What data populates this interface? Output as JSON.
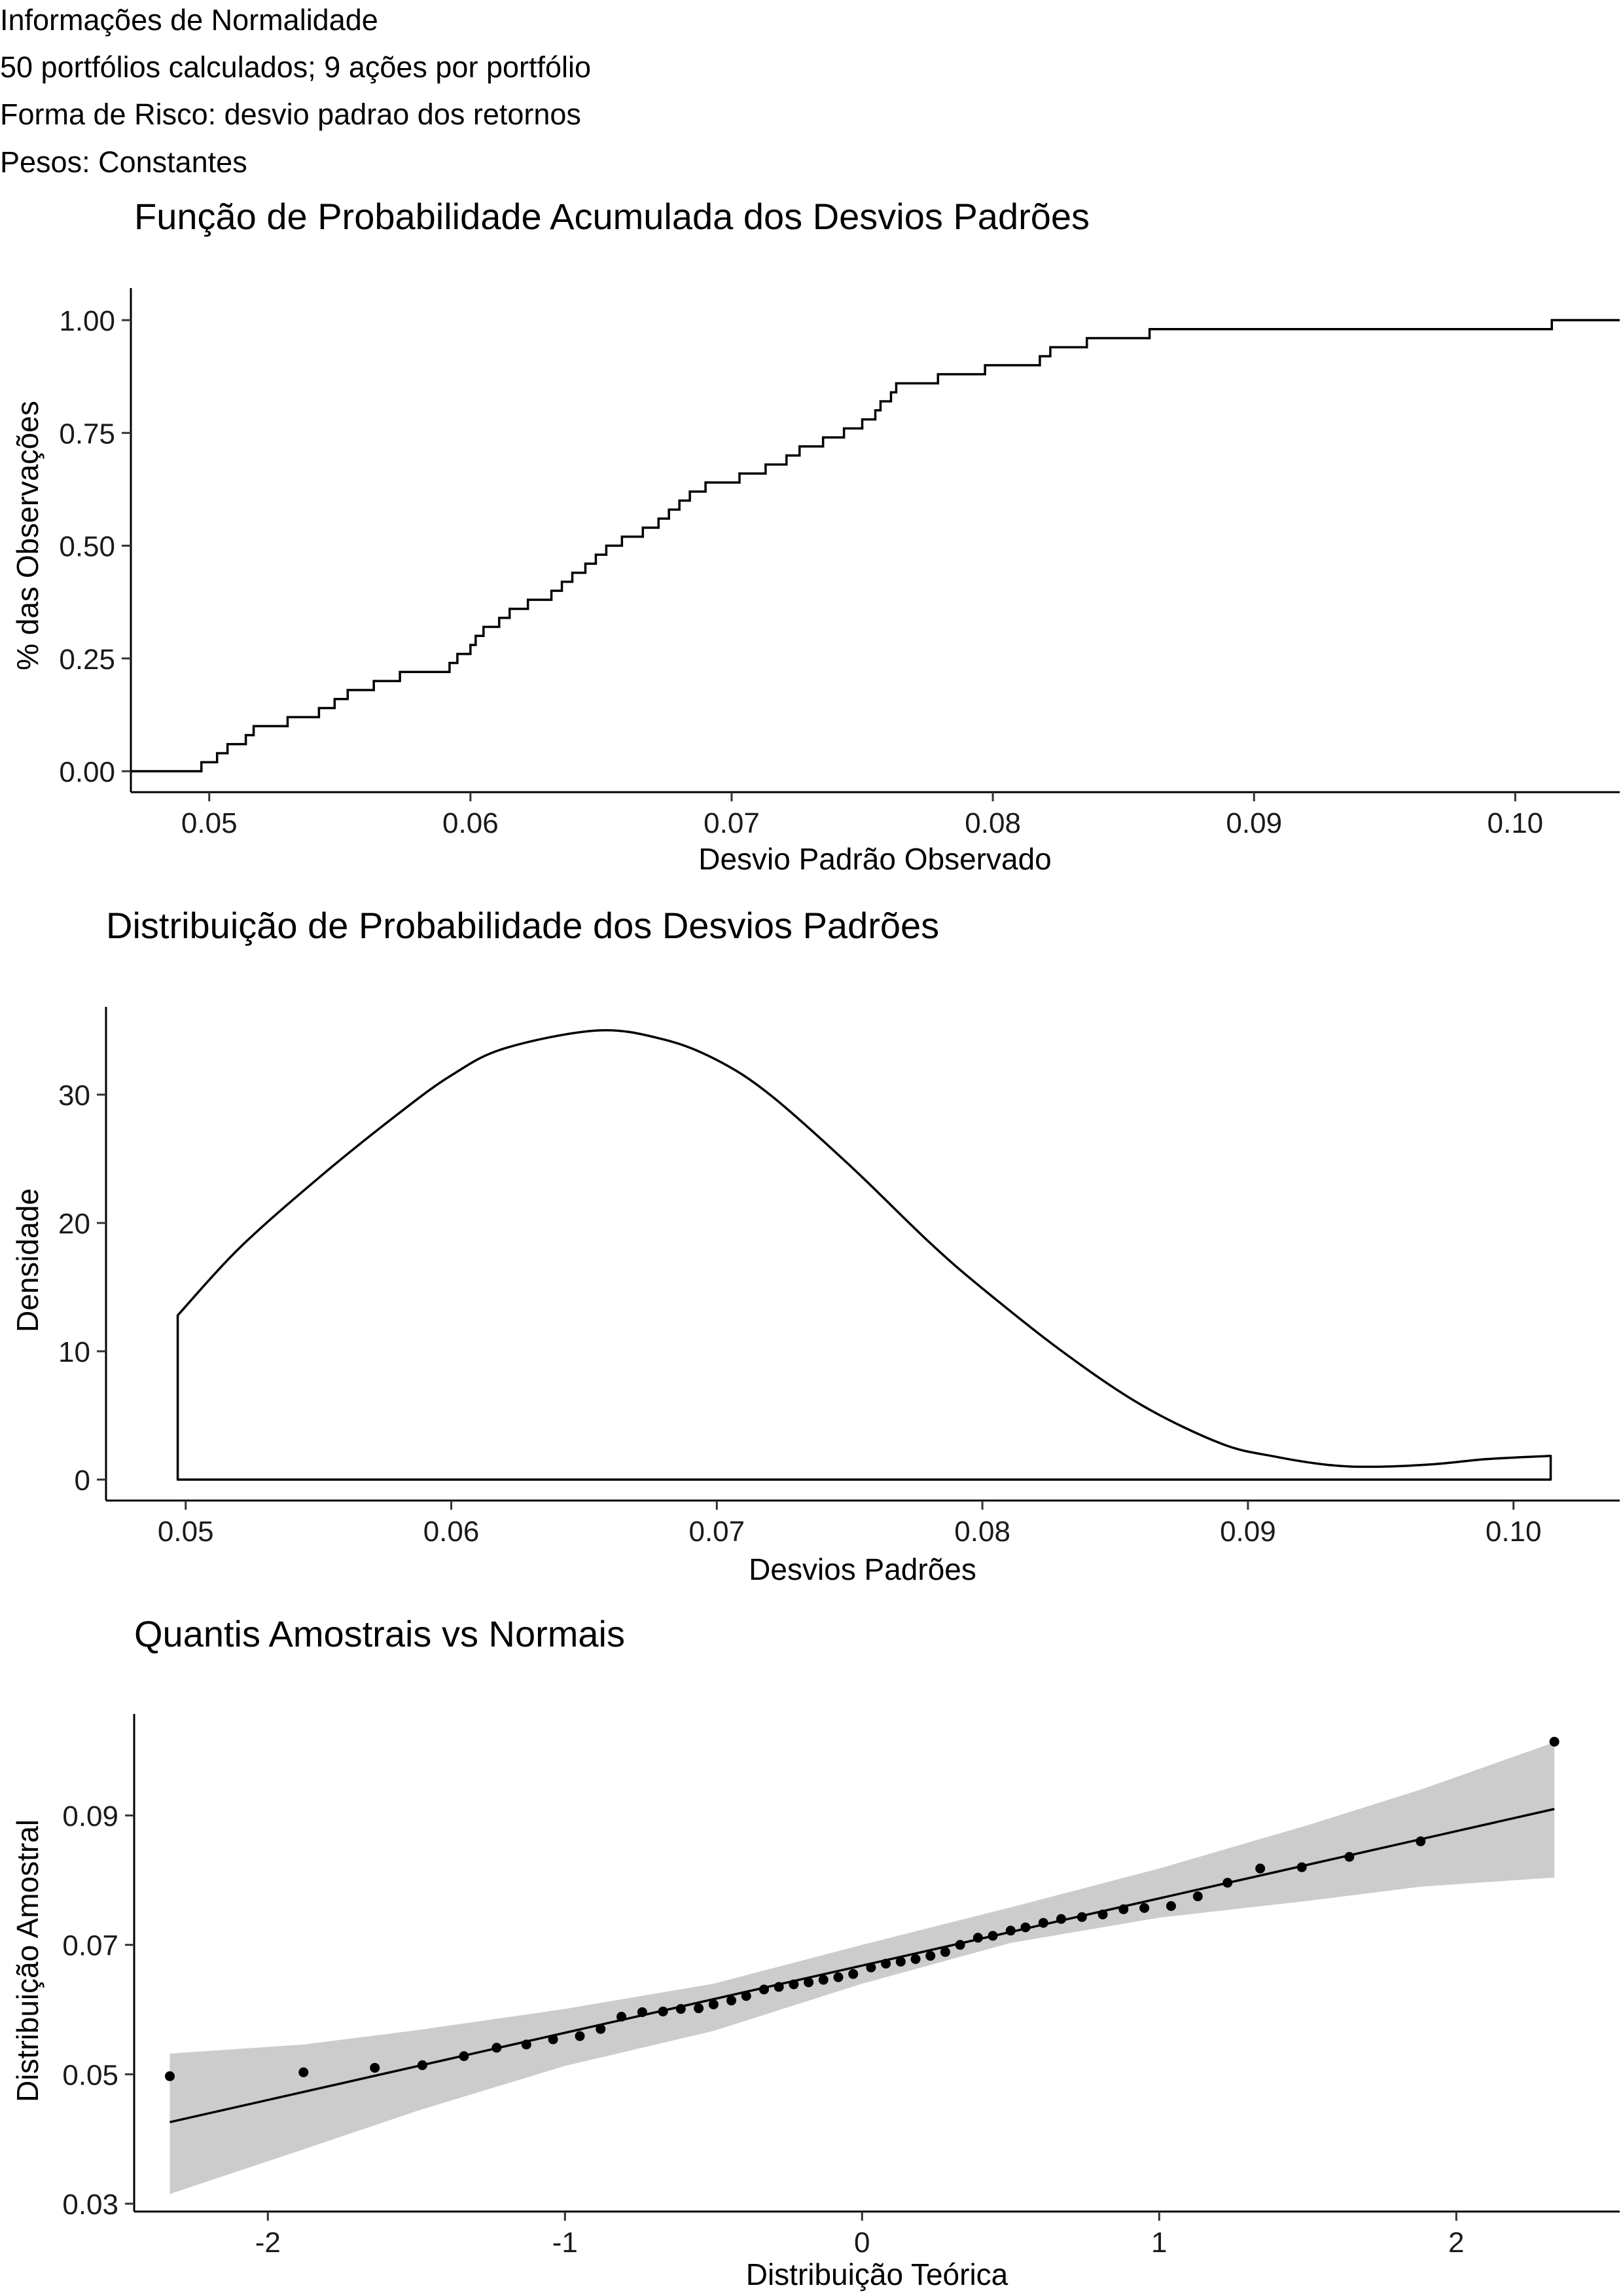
{
  "header": {
    "lines": [
      "Informações de Normalidade",
      "50 portfólios calculados; 9 ações por portfólio",
      "Forma de Risco: desvio padrao dos retornos",
      "Pesos: Constantes"
    ]
  },
  "chart_data": [
    {
      "type": "line",
      "subtype": "ecdf-step",
      "title": "Função de Probabilidade Acumulada dos Desvios Padrões",
      "xlabel": "Desvio Padrão Observado",
      "ylabel": "% das Observações",
      "xlim": [
        0.047,
        0.104
      ],
      "ylim": [
        0,
        1
      ],
      "xticks": [
        "0.05",
        "0.06",
        "0.07",
        "0.08",
        "0.09",
        "0.10"
      ],
      "yticks": [
        "0.00",
        "0.25",
        "0.50",
        "0.75",
        "1.00"
      ],
      "x": [
        0.0497,
        0.0503,
        0.0507,
        0.0514,
        0.0517,
        0.053,
        0.0542,
        0.0548,
        0.0553,
        0.0563,
        0.0573,
        0.0592,
        0.0595,
        0.06,
        0.0602,
        0.0605,
        0.0611,
        0.0615,
        0.0622,
        0.0631,
        0.0635,
        0.0639,
        0.0644,
        0.0648,
        0.0652,
        0.0658,
        0.0666,
        0.0672,
        0.0676,
        0.068,
        0.0684,
        0.069,
        0.0703,
        0.0713,
        0.0721,
        0.0726,
        0.0735,
        0.0743,
        0.075,
        0.0755,
        0.0757,
        0.0761,
        0.0763,
        0.0779,
        0.0797,
        0.0818,
        0.0822,
        0.0836,
        0.086,
        0.1014
      ],
      "y": [
        0.02,
        0.04,
        0.06,
        0.08,
        0.1,
        0.12,
        0.14,
        0.16,
        0.18,
        0.2,
        0.22,
        0.24,
        0.26,
        0.28,
        0.3,
        0.32,
        0.34,
        0.36,
        0.38,
        0.4,
        0.42,
        0.44,
        0.46,
        0.48,
        0.5,
        0.52,
        0.54,
        0.56,
        0.58,
        0.6,
        0.62,
        0.64,
        0.66,
        0.68,
        0.7,
        0.72,
        0.74,
        0.76,
        0.78,
        0.8,
        0.82,
        0.84,
        0.86,
        0.88,
        0.9,
        0.92,
        0.94,
        0.96,
        0.98,
        1.0
      ],
      "grid": false
    },
    {
      "type": "area",
      "subtype": "density",
      "title": "Distribuição de Probabilidade dos Desvios Padrões",
      "xlabel": "Desvios Padrões",
      "ylabel": "Densidade",
      "xlim": [
        0.047,
        0.104
      ],
      "ylim": [
        0,
        35
      ],
      "xticks": [
        "0.05",
        "0.06",
        "0.07",
        "0.08",
        "0.09",
        "0.10"
      ],
      "yticks": [
        "0",
        "10",
        "20",
        "30"
      ],
      "x": [
        0.0497,
        0.052,
        0.055,
        0.058,
        0.06,
        0.062,
        0.0655,
        0.068,
        0.07,
        0.072,
        0.075,
        0.078,
        0.08,
        0.083,
        0.086,
        0.089,
        0.091,
        0.093,
        0.0947,
        0.097,
        0.099,
        0.1014
      ],
      "y": [
        12.8,
        18.0,
        23.5,
        28.5,
        31.5,
        33.6,
        35.0,
        34.3,
        32.7,
        30.0,
        24.5,
        18.5,
        14.9,
        10.0,
        5.8,
        2.8,
        1.8,
        1.15,
        1.0,
        1.2,
        1.6,
        1.85
      ],
      "grid": false
    },
    {
      "type": "scatter",
      "subtype": "qq-plot",
      "title": "Quantis Amostrais vs Normais",
      "xlabel": "Distribuição Teórica",
      "ylabel": "Distribuição Amostral",
      "xlim": [
        -2.45,
        2.55
      ],
      "ylim": [
        0.0305,
        0.095
      ],
      "xticks": [
        "-2",
        "-1",
        "0",
        "1",
        "2"
      ],
      "yticks": [
        "0.03",
        "0.05",
        "0.07",
        "0.09"
      ],
      "x": [
        -2.33,
        -1.88,
        -1.64,
        -1.48,
        -1.34,
        -1.23,
        -1.13,
        -1.04,
        -0.95,
        -0.88,
        -0.81,
        -0.74,
        -0.67,
        -0.61,
        -0.55,
        -0.5,
        -0.44,
        -0.39,
        -0.33,
        -0.28,
        -0.23,
        -0.18,
        -0.13,
        -0.08,
        -0.03,
        0.03,
        0.08,
        0.13,
        0.18,
        0.23,
        0.28,
        0.33,
        0.39,
        0.44,
        0.5,
        0.55,
        0.61,
        0.67,
        0.74,
        0.81,
        0.88,
        0.95,
        1.04,
        1.13,
        1.23,
        1.34,
        1.48,
        1.64,
        1.88,
        2.33
      ],
      "y": [
        0.0497,
        0.0503,
        0.051,
        0.0514,
        0.0528,
        0.0541,
        0.0546,
        0.0554,
        0.0559,
        0.057,
        0.0589,
        0.0596,
        0.0597,
        0.0601,
        0.0602,
        0.0608,
        0.0614,
        0.0621,
        0.0631,
        0.0635,
        0.0639,
        0.0642,
        0.0646,
        0.065,
        0.0655,
        0.0665,
        0.0671,
        0.0674,
        0.0678,
        0.0683,
        0.0689,
        0.07,
        0.0711,
        0.0714,
        0.0722,
        0.0727,
        0.0734,
        0.074,
        0.0743,
        0.0747,
        0.0755,
        0.0757,
        0.076,
        0.0775,
        0.0796,
        0.0818,
        0.082,
        0.0836,
        0.086,
        0.1014
      ],
      "line": {
        "x": [
          -2.33,
          2.33
        ],
        "y": [
          0.0426,
          0.091
        ]
      },
      "band": {
        "x": [
          -2.33,
          -1.88,
          -1.5,
          -1.0,
          -0.5,
          0,
          0.5,
          1.0,
          1.5,
          1.88,
          2.33
        ],
        "lower": [
          0.0315,
          0.0384,
          0.0443,
          0.0513,
          0.0567,
          0.064,
          0.0703,
          0.0742,
          0.0768,
          0.079,
          0.0804
        ],
        "upper": [
          0.0532,
          0.0546,
          0.0568,
          0.0601,
          0.064,
          0.07,
          0.0758,
          0.0818,
          0.0885,
          0.094,
          0.1013
        ]
      },
      "grid": false
    }
  ]
}
